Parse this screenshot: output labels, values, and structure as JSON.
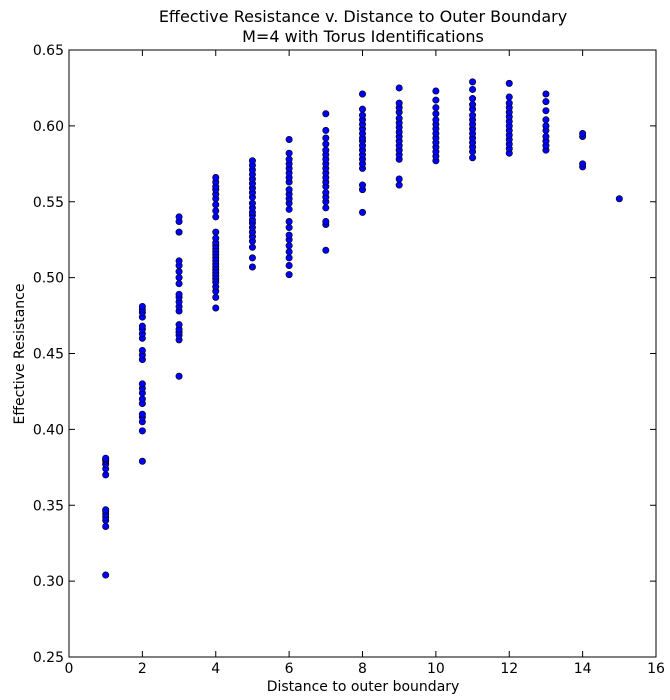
{
  "chart_data": {
    "type": "scatter",
    "title_lines": [
      "Effective Resistance v. Distance to Outer Boundary",
      "M=4 with Torus Identifications"
    ],
    "xlabel": "Distance to outer boundary",
    "ylabel": "Effective Resistance",
    "xlim": [
      0,
      16
    ],
    "ylim": [
      0.25,
      0.65
    ],
    "xticks": [
      0,
      2,
      4,
      6,
      8,
      10,
      12,
      14,
      16
    ],
    "yticks": [
      0.25,
      0.3,
      0.35,
      0.4,
      0.45,
      0.5,
      0.55,
      0.6,
      0.65
    ],
    "xtick_labels": [
      "0",
      "2",
      "4",
      "6",
      "8",
      "10",
      "12",
      "14",
      "16"
    ],
    "ytick_labels": [
      "0.25",
      "0.30",
      "0.35",
      "0.40",
      "0.45",
      "0.50",
      "0.55",
      "0.60",
      "0.65"
    ],
    "grid": false,
    "marker_color": "#0000ff",
    "marker_edge": "#000000",
    "groups": [
      {
        "x": 1,
        "y": [
          0.304,
          0.336,
          0.34,
          0.342,
          0.344,
          0.346,
          0.347,
          0.37,
          0.374,
          0.377,
          0.379,
          0.38,
          0.381
        ]
      },
      {
        "x": 2,
        "y": [
          0.379,
          0.399,
          0.405,
          0.408,
          0.41,
          0.417,
          0.42,
          0.424,
          0.427,
          0.43,
          0.446,
          0.449,
          0.452,
          0.46,
          0.463,
          0.466,
          0.468,
          0.474,
          0.477,
          0.479,
          0.481
        ]
      },
      {
        "x": 3,
        "y": [
          0.435,
          0.459,
          0.462,
          0.464,
          0.466,
          0.469,
          0.478,
          0.481,
          0.484,
          0.487,
          0.489,
          0.496,
          0.5,
          0.504,
          0.508,
          0.511,
          0.53,
          0.537,
          0.54
        ]
      },
      {
        "x": 4,
        "y": [
          0.48,
          0.487,
          0.491,
          0.494,
          0.497,
          0.499,
          0.501,
          0.503,
          0.505,
          0.507,
          0.509,
          0.511,
          0.513,
          0.515,
          0.517,
          0.519,
          0.521,
          0.523,
          0.526,
          0.53,
          0.54,
          0.544,
          0.548,
          0.552,
          0.555,
          0.558,
          0.56,
          0.563,
          0.566
        ]
      },
      {
        "x": 5,
        "y": [
          0.507,
          0.513,
          0.52,
          0.524,
          0.527,
          0.53,
          0.533,
          0.536,
          0.538,
          0.541,
          0.543,
          0.546,
          0.549,
          0.553,
          0.556,
          0.559,
          0.562,
          0.565,
          0.568,
          0.571,
          0.574,
          0.577
        ]
      },
      {
        "x": 6,
        "y": [
          0.502,
          0.508,
          0.513,
          0.517,
          0.521,
          0.525,
          0.528,
          0.533,
          0.537,
          0.545,
          0.549,
          0.552,
          0.555,
          0.558,
          0.563,
          0.566,
          0.569,
          0.572,
          0.575,
          0.578,
          0.582,
          0.591
        ]
      },
      {
        "x": 7,
        "y": [
          0.518,
          0.535,
          0.537,
          0.546,
          0.55,
          0.553,
          0.556,
          0.56,
          0.563,
          0.566,
          0.569,
          0.572,
          0.575,
          0.578,
          0.581,
          0.584,
          0.588,
          0.592,
          0.597,
          0.608
        ]
      },
      {
        "x": 8,
        "y": [
          0.543,
          0.558,
          0.561,
          0.572,
          0.575,
          0.578,
          0.581,
          0.584,
          0.587,
          0.59,
          0.592,
          0.595,
          0.598,
          0.601,
          0.604,
          0.607,
          0.611,
          0.621
        ]
      },
      {
        "x": 9,
        "y": [
          0.561,
          0.565,
          0.578,
          0.581,
          0.584,
          0.587,
          0.59,
          0.593,
          0.596,
          0.599,
          0.602,
          0.605,
          0.609,
          0.612,
          0.615,
          0.625
        ]
      },
      {
        "x": 10,
        "y": [
          0.577,
          0.58,
          0.583,
          0.586,
          0.589,
          0.592,
          0.595,
          0.598,
          0.601,
          0.604,
          0.608,
          0.612,
          0.617,
          0.623
        ]
      },
      {
        "x": 11,
        "y": [
          0.579,
          0.583,
          0.586,
          0.589,
          0.592,
          0.595,
          0.598,
          0.601,
          0.604,
          0.607,
          0.611,
          0.614,
          0.618,
          0.624,
          0.629
        ]
      },
      {
        "x": 12,
        "y": [
          0.582,
          0.585,
          0.588,
          0.591,
          0.594,
          0.597,
          0.6,
          0.603,
          0.606,
          0.609,
          0.612,
          0.615,
          0.619,
          0.628
        ]
      },
      {
        "x": 13,
        "y": [
          0.584,
          0.587,
          0.59,
          0.593,
          0.597,
          0.6,
          0.604,
          0.61,
          0.616,
          0.621
        ]
      },
      {
        "x": 14,
        "y": [
          0.573,
          0.575,
          0.593,
          0.595
        ]
      },
      {
        "x": 15,
        "y": [
          0.552
        ]
      }
    ]
  }
}
